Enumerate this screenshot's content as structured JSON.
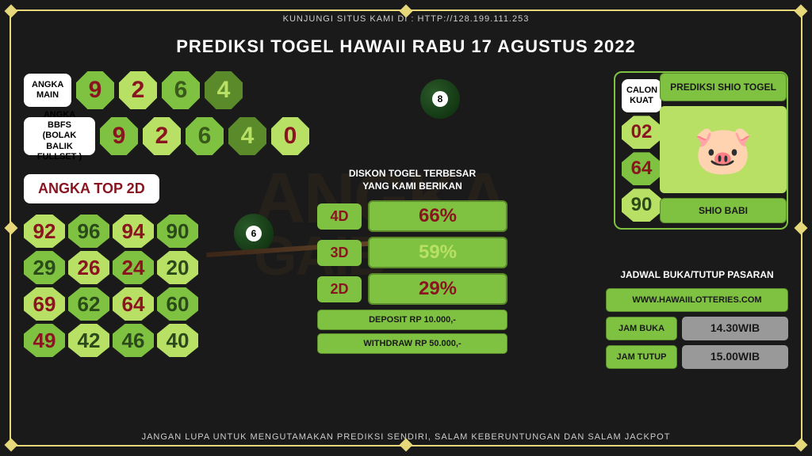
{
  "header": {
    "top_text": "KUNJUNGI SITUS KAMI DI : HTTP://128.199.111.253",
    "title": "PREDIKSI TOGEL HAWAII RABU 17 AGUSTUS 2022",
    "bottom_text": "JANGAN LUPA UNTUK MENGUTAMAKAN PREDIKSI SENDIRI, SALAM KEBERUNTUNGAN DAN SALAM JACKPOT"
  },
  "angka_main": {
    "label": "ANGKA MAIN",
    "digits": [
      {
        "v": "9",
        "bg": "#7fc241",
        "fg": "#8a1520"
      },
      {
        "v": "2",
        "bg": "#b8e065",
        "fg": "#8a1520"
      },
      {
        "v": "6",
        "bg": "#7fc241",
        "fg": "#3a5a1a"
      },
      {
        "v": "4",
        "bg": "#5a8a2a",
        "fg": "#b8e065"
      }
    ]
  },
  "bbfs": {
    "label": "ANGKA BBFS (BOLAK BALIK FULLSET )",
    "digits": [
      {
        "v": "9",
        "bg": "#7fc241",
        "fg": "#8a1520"
      },
      {
        "v": "2",
        "bg": "#b8e065",
        "fg": "#8a1520"
      },
      {
        "v": "6",
        "bg": "#7fc241",
        "fg": "#3a5a1a"
      },
      {
        "v": "4",
        "bg": "#5a8a2a",
        "fg": "#b8e065"
      },
      {
        "v": "0",
        "bg": "#b8e065",
        "fg": "#8a1520"
      }
    ]
  },
  "top2d": {
    "label": "ANGKA TOP 2D",
    "cells": [
      {
        "v": "92",
        "bg": "#b8e065",
        "fg": "#8a1520"
      },
      {
        "v": "96",
        "bg": "#7fc241",
        "fg": "#2a4a1a"
      },
      {
        "v": "94",
        "bg": "#b8e065",
        "fg": "#8a1520"
      },
      {
        "v": "90",
        "bg": "#7fc241",
        "fg": "#2a4a1a"
      },
      {
        "v": "29",
        "bg": "#7fc241",
        "fg": "#2a4a1a"
      },
      {
        "v": "26",
        "bg": "#b8e065",
        "fg": "#8a1520"
      },
      {
        "v": "24",
        "bg": "#7fc241",
        "fg": "#8a1520"
      },
      {
        "v": "20",
        "bg": "#b8e065",
        "fg": "#2a4a1a"
      },
      {
        "v": "69",
        "bg": "#b8e065",
        "fg": "#8a1520"
      },
      {
        "v": "62",
        "bg": "#7fc241",
        "fg": "#2a4a1a"
      },
      {
        "v": "64",
        "bg": "#b8e065",
        "fg": "#8a1520"
      },
      {
        "v": "60",
        "bg": "#7fc241",
        "fg": "#2a4a1a"
      },
      {
        "v": "49",
        "bg": "#7fc241",
        "fg": "#8a1520"
      },
      {
        "v": "42",
        "bg": "#b8e065",
        "fg": "#2a4a1a"
      },
      {
        "v": "46",
        "bg": "#7fc241",
        "fg": "#2a4a1a"
      },
      {
        "v": "40",
        "bg": "#b8e065",
        "fg": "#2a4a1a"
      }
    ]
  },
  "diskon": {
    "title_l1": "DISKON TOGEL TERBESAR",
    "title_l2": "YANG KAMI BERIKAN",
    "rows": [
      {
        "label": "4D",
        "pct": "66%",
        "alt": false
      },
      {
        "label": "3D",
        "pct": "59%",
        "alt": true
      },
      {
        "label": "2D",
        "pct": "29%",
        "alt": false
      }
    ],
    "deposit": "DEPOSIT RP 10.000,-",
    "withdraw": "WITHDRAW RP 50.000,-"
  },
  "calon": {
    "label": "CALON KUAT",
    "nums": [
      {
        "v": "02",
        "bg": "#b8e065",
        "fg": "#8a1520"
      },
      {
        "v": "64",
        "bg": "#7fc241",
        "fg": "#8a1520"
      },
      {
        "v": "90",
        "bg": "#b8e065",
        "fg": "#2a4a1a"
      }
    ]
  },
  "shio": {
    "title": "PREDIKSI SHIO TOGEL",
    "name": "SHIO BABI",
    "emoji": "🐷"
  },
  "jadwal": {
    "title": "JADWAL BUKA/TUTUP PASARAN",
    "site": "WWW.HAWAIILOTTERIES.COM",
    "buka_label": "JAM BUKA",
    "buka_val": "14.30WIB",
    "tutup_label": "JAM TUTUP",
    "tutup_val": "15.00WIB"
  },
  "watermark": {
    "l1": "ANGKA",
    "l2": "GAIB"
  }
}
